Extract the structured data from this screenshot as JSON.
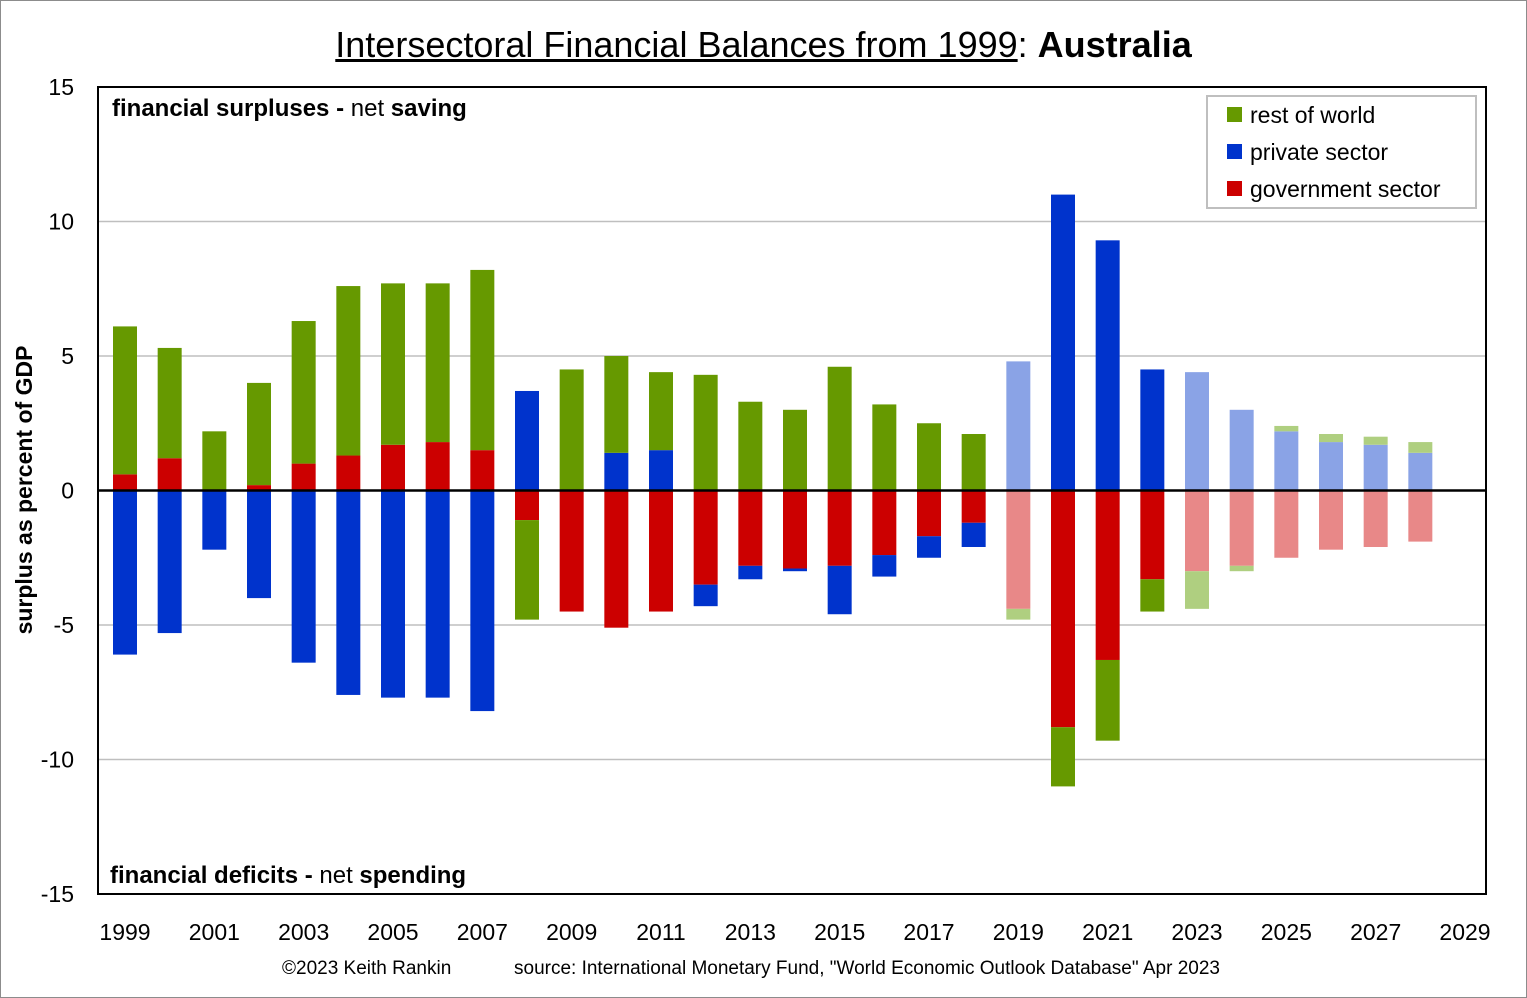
{
  "title": {
    "main": "Intersectoral Financial Balances from 1999",
    "separator": ": ",
    "country": "Australia"
  },
  "footer": {
    "credit": "©2023 Keith Rankin",
    "source": "source:  International Monetary Fund, \"World Economic Outlook Database\" Apr 2023"
  },
  "annotations": {
    "surplus_bold": "financial surpluses -",
    "surplus_normal": " net ",
    "surplus_bold2": "saving",
    "deficit_bold": "financial deficits -",
    "deficit_normal": " net ",
    "deficit_bold2": "spending"
  },
  "chart_data": {
    "type": "bar",
    "stacked": true,
    "title": "Intersectoral Financial Balances from 1999: Australia",
    "ylabel": "surplus as percent of GDP",
    "xlabel": "",
    "ylim": [
      -15,
      15
    ],
    "yticks": [
      15,
      10,
      5,
      0,
      -5,
      -10,
      -15
    ],
    "xtick_labels": [
      "1999",
      "2001",
      "2003",
      "2005",
      "2007",
      "2009",
      "2011",
      "2013",
      "2015",
      "2017",
      "2019",
      "2021",
      "2023",
      "2025",
      "2027",
      "2029"
    ],
    "grid": true,
    "legend_position": "top-right",
    "categories": [
      "1999",
      "2000",
      "2001",
      "2002",
      "2003",
      "2004",
      "2005",
      "2006",
      "2007",
      "2008",
      "2009",
      "2010",
      "2011",
      "2012",
      "2013",
      "2014",
      "2015",
      "2016",
      "2017",
      "2018",
      "2019",
      "2020",
      "2021",
      "2022",
      "2023",
      "2024",
      "2025",
      "2026",
      "2027",
      "2028"
    ],
    "estimated_or_forecast": [
      false,
      false,
      false,
      false,
      false,
      false,
      false,
      false,
      false,
      false,
      false,
      false,
      false,
      false,
      false,
      false,
      false,
      false,
      false,
      false,
      true,
      false,
      false,
      false,
      true,
      true,
      true,
      true,
      true,
      true
    ],
    "series": [
      {
        "name": "rest of world",
        "color": "#669900",
        "light_color": "#afcf80",
        "values": [
          5.5,
          4.1,
          2.2,
          3.8,
          5.3,
          6.3,
          6.0,
          5.9,
          6.7,
          -3.7,
          4.5,
          3.6,
          2.9,
          4.3,
          3.3,
          3.0,
          4.6,
          3.2,
          2.5,
          2.1,
          -0.4,
          -2.2,
          -3.0,
          -1.2,
          -1.4,
          -0.2,
          0.2,
          0.3,
          0.3,
          0.4
        ]
      },
      {
        "name": "private sector",
        "color": "#0033cc",
        "light_color": "#8aa3e6",
        "values": [
          -6.1,
          -5.3,
          -2.2,
          -4.0,
          -6.4,
          -7.6,
          -7.7,
          -7.7,
          -8.2,
          3.7,
          0.0,
          1.4,
          1.5,
          -0.8,
          -0.5,
          -0.1,
          -1.8,
          -0.8,
          -0.8,
          -0.9,
          4.8,
          11.0,
          9.3,
          4.5,
          4.4,
          3.0,
          2.2,
          1.8,
          1.7,
          1.4
        ]
      },
      {
        "name": "government sector",
        "color": "#cc0000",
        "light_color": "#e88888",
        "values": [
          0.6,
          1.2,
          0.0,
          0.2,
          1.0,
          1.3,
          1.7,
          1.8,
          1.5,
          -1.1,
          -4.5,
          -5.1,
          -4.5,
          -3.5,
          -2.8,
          -2.9,
          -2.8,
          -2.4,
          -1.7,
          -1.2,
          -4.4,
          -8.8,
          -6.3,
          -3.3,
          -3.0,
          -2.8,
          -2.5,
          -2.2,
          -2.1,
          -1.9
        ]
      }
    ]
  }
}
